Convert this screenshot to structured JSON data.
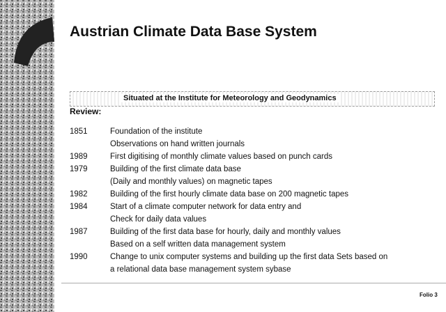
{
  "title": "Austrian Climate Data Base System",
  "banner": "Situated at the Institute for Meteorology and Geodynamics",
  "section": "Review:",
  "entries": [
    {
      "year": "1851",
      "lines": [
        "Foundation of the institute",
        "Observations on hand written journals"
      ]
    },
    {
      "year": "1989",
      "lines": [
        "First digitising of monthly climate values based on punch cards"
      ]
    },
    {
      "year": "1979",
      "lines": [
        "Building of the first climate data base",
        "(Daily and monthly values) on magnetic tapes"
      ]
    },
    {
      "year": "1982",
      "lines": [
        "Building of the first hourly climate data base on 200 magnetic tapes"
      ]
    },
    {
      "year": "1984",
      "lines": [
        "Start of a climate computer network for data entry and",
        "Check for daily data values"
      ]
    },
    {
      "year": "1987",
      "lines": [
        "Building of the first data base for hourly, daily and monthly values",
        "Based on a self written data management system"
      ]
    },
    {
      "year": "1990",
      "lines": [
        "Change to unix computer systems and building up the first data Sets based on",
        "a relational data base management system sybase"
      ]
    }
  ],
  "footer": "Folio 3"
}
